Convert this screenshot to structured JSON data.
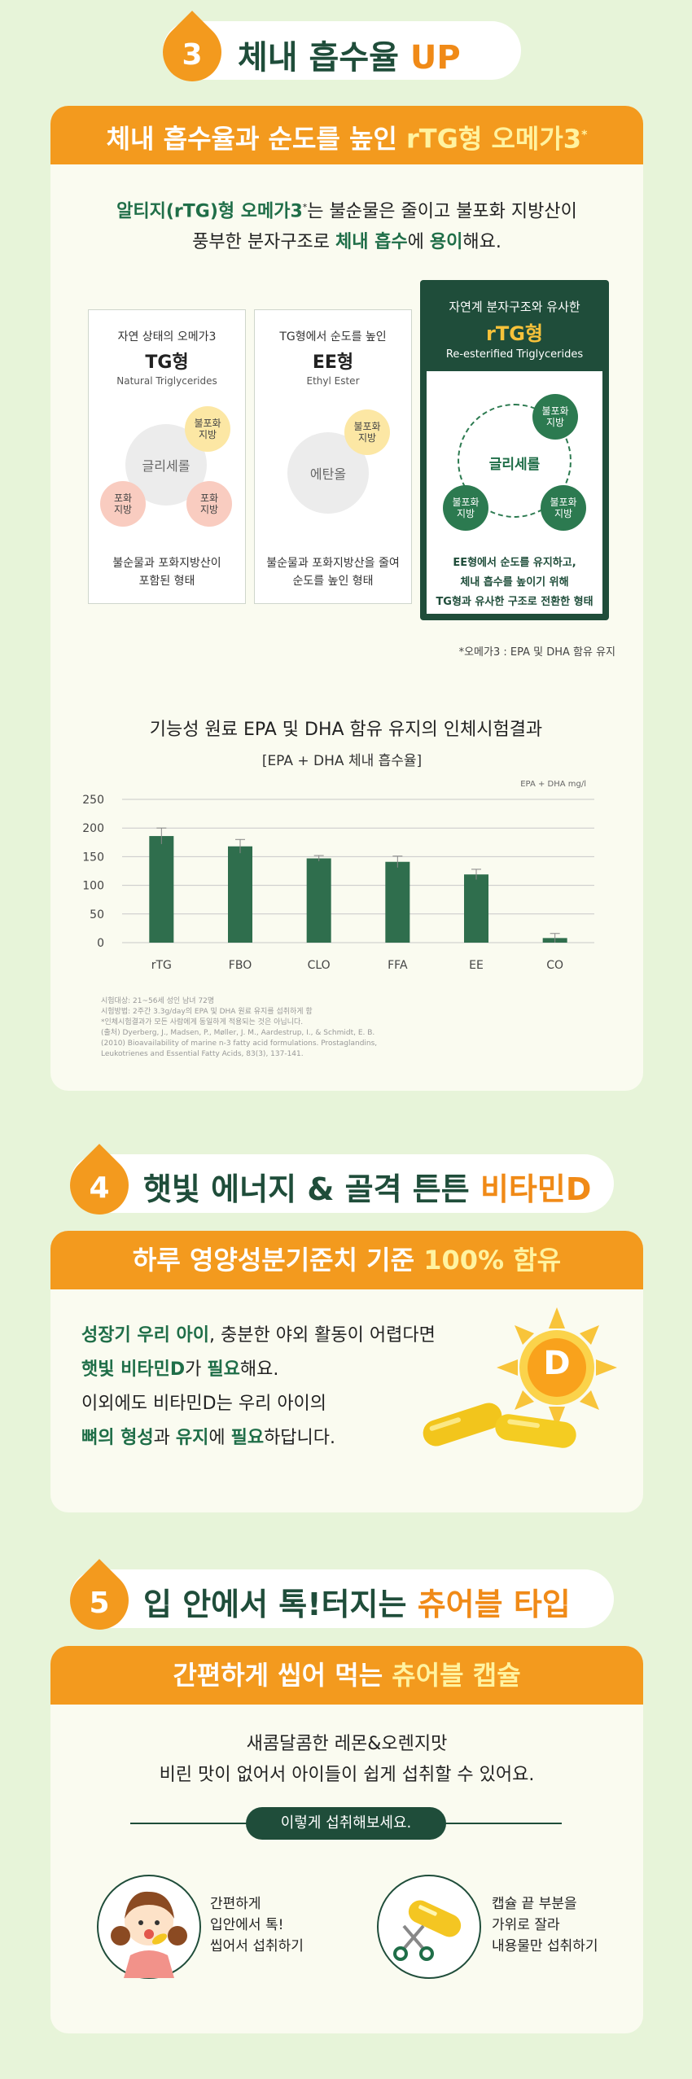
{
  "colors": {
    "bg": "#e7f4d9",
    "accent": "#f39a1e",
    "green": "#1f6e48",
    "dark_green": "#1f4d3a",
    "bar_green": "#2f6e4d"
  },
  "s3": {
    "num": "3",
    "title_a": "체내 흡수율 ",
    "title_b": "UP",
    "bar_a": "체내 흡수율과 순도를 높인 ",
    "bar_b": "rTG형 오메가3",
    "bar_sup": "*",
    "intro1_a": "알티지(rTG)형 오메가3",
    "intro1_sup": "*",
    "intro1_b": "는 불순물은 줄이고 불포화 지방산이",
    "intro2_a": "풍부한 분자구조로 ",
    "intro2_b": "체내 흡수",
    "intro2_c": "에 ",
    "intro2_d": "용이",
    "intro2_e": "해요.",
    "tg": {
      "t1": "자연 상태의 오메가3",
      "t2": "TG형",
      "t3": "Natural Triglycerides",
      "center": "글리세롤",
      "s1": "불포화\n지방",
      "s2": "포화\n지방",
      "s3": "포화\n지방",
      "cap1": "불순물과 포화지방산이",
      "cap2": "포함된 형태"
    },
    "ee": {
      "t1": "TG형에서 순도를 높인",
      "t2": "EE형",
      "t3": "Ethyl Ester",
      "center": "에탄올",
      "s1": "불포화\n지방",
      "cap1": "불순물과 포화지방산을 줄여",
      "cap2": "순도를 높인 형태"
    },
    "rtg": {
      "t1": "자연계 분자구조와 유사한",
      "t2": "rTG형",
      "t3": "Re-esterified Triglycerides",
      "center": "글리세롤",
      "s1": "불포화\n지방",
      "s2": "불포화\n지방",
      "s3": "불포화\n지방",
      "cap1": "EE형에서 순도를 유지하고,",
      "cap2": "체내 흡수를 높이기 위해",
      "cap3": "TG형과 유사한 구조로 전환한 형태"
    },
    "footnote": "*오메가3 : EPA 및 DHA  함유 유지",
    "chart_heading": "기능성 원료 EPA 및 DHA 함유 유지의 인체시험결과",
    "refs": [
      "시험대상: 21~56세 성인 남녀 72명",
      "시험방법: 2주간 3.3g/day의 EPA 및 DHA 원료 유지를 섭취하게 함",
      "*인체시험결과가 모든 사람에게 동일하게 적용되는 것은 아닙니다.",
      "(출처) Dyerberg, J., Madsen, P., Møller, J. M., Aardestrup, I., & Schmidt, E. B.",
      "(2010) Bioavailability of marine n-3 fatty acid formulations. Prostaglandins,",
      "Leukotrienes and Essential Fatty Acids, 83(3), 137-141."
    ]
  },
  "chart_data": {
    "type": "bar",
    "title": "[EPA + DHA 체내 흡수율]",
    "unit_label": "EPA + DHA mg/l",
    "categories": [
      "rTG",
      "FBO",
      "CLO",
      "FFA",
      "EE",
      "CO"
    ],
    "values": [
      186,
      168,
      147,
      141,
      119,
      8
    ],
    "errors": [
      14,
      12,
      5,
      10,
      9,
      8
    ],
    "yticks": [
      "250",
      "200",
      "150",
      "100",
      "50",
      "0"
    ],
    "ylim": [
      0,
      250
    ],
    "grid": true,
    "color": "#2f6e4d"
  },
  "s4": {
    "num": "4",
    "title_a": "햇빛 에너지 & 골격 튼튼 ",
    "title_b": "비타민D",
    "bar_a": "하루 영양성분기준치 기준 ",
    "bar_b": "100% 함유",
    "l1_a": "성장기 우리 아이",
    "l1_b": ", 충분한 야외 활동이 어렵다면",
    "l2_a": "햇빛 비타민D",
    "l2_b": "가 ",
    "l2_c": "필요",
    "l2_d": "해요.",
    "l3": "이외에도 비타민D는 우리 아이의",
    "l4_a": "뼈의 형성",
    "l4_b": "과 ",
    "l4_c": "유지",
    "l4_d": "에 ",
    "l4_e": "필요",
    "l4_f": "하답니다.",
    "sun_letter": "D"
  },
  "s5": {
    "num": "5",
    "title_a": "입 안에서 톡!터지는 ",
    "title_b": "츄어블 타입",
    "bar_a": "간편하게 씹어 먹는 ",
    "bar_b": "츄어블 캡슐",
    "l1": "새콤달콤한 레몬&오렌지맛",
    "l2": "비린 맛이 없어서 아이들이 쉽게 섭취할 수 있어요.",
    "howto": "이렇게 섭취해보세요.",
    "way1": [
      "간편하게",
      "입안에서 톡!",
      "씹어서 섭취하기"
    ],
    "way2": [
      "캡슐 끝 부분을",
      "가위로 잘라",
      "내용물만 섭취하기"
    ]
  }
}
